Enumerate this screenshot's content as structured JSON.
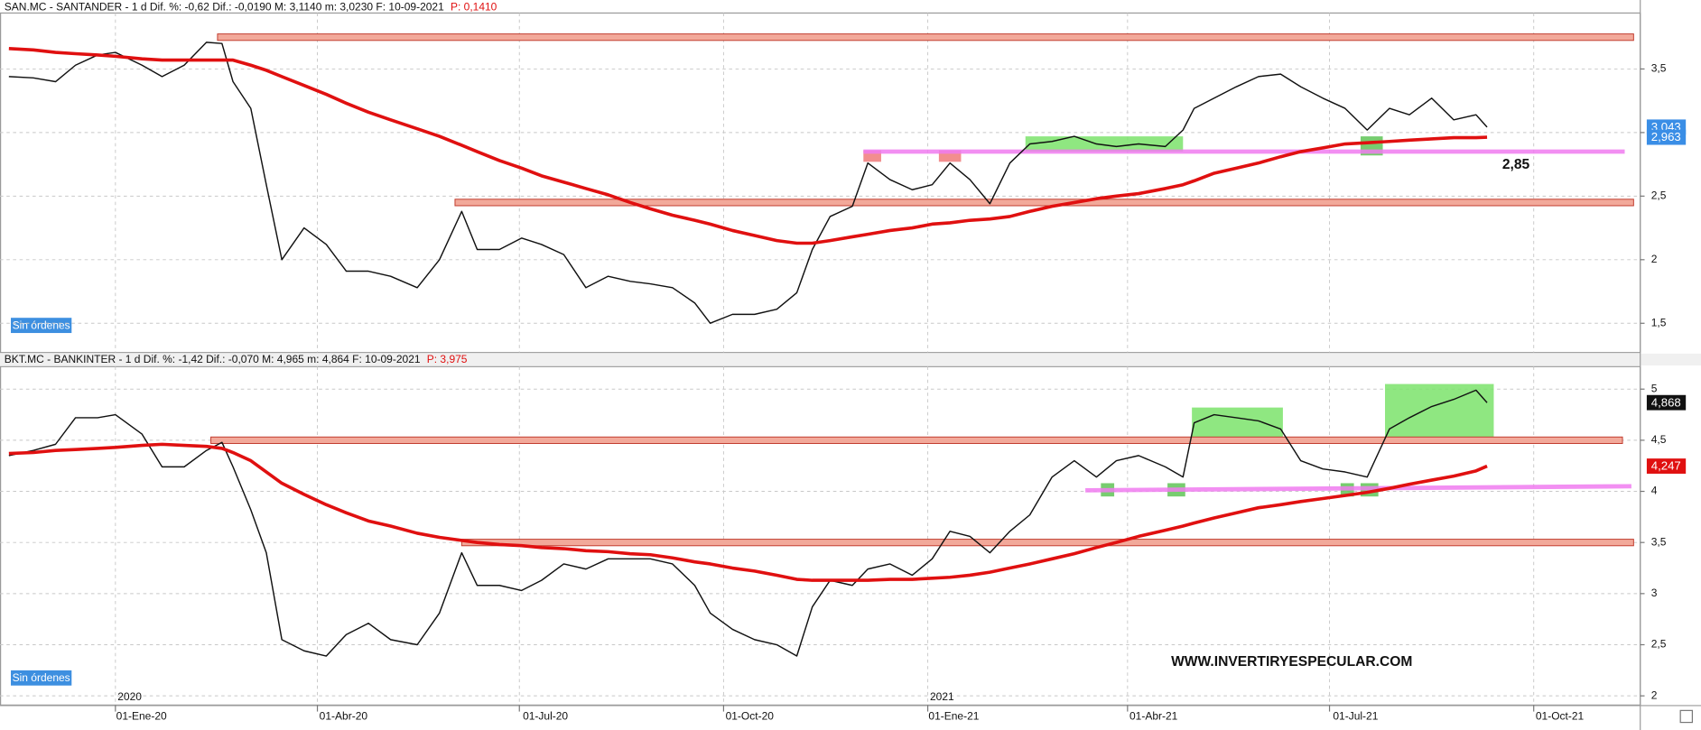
{
  "chart_data": [
    {
      "type": "line",
      "title": "SAN.MC - SANTANDER -  1 d  Dif. %: -0,62  Dif.: -0,0190  M: 3,1140  m: 3,0230  F: 10-09-2021",
      "subtitle": "P: 0,1410",
      "status": "Sin órdenes",
      "xlim": [
        -52,
        687
      ],
      "ylim": [
        1.27,
        3.94
      ],
      "yticks": [
        {
          "value": 3.5,
          "label": "3,5"
        },
        3,
        {
          "value": 2.5,
          "label": "2,5"
        },
        2,
        {
          "value": 1.5,
          "label": "1,5"
        }
      ],
      "grid": true,
      "x": [
        -48,
        -37,
        -27,
        -18,
        -8,
        0,
        12,
        21,
        31,
        41,
        48,
        53,
        61,
        68,
        75,
        85,
        95,
        104,
        114,
        124,
        136,
        146,
        156,
        163,
        173,
        183,
        192,
        202,
        212,
        222,
        232,
        241,
        251,
        261,
        268,
        278,
        288,
        298,
        307,
        314,
        322,
        332,
        339,
        349,
        359,
        368,
        376,
        385,
        394,
        403,
        412,
        422,
        432,
        442,
        451,
        461,
        473,
        481,
        486,
        495,
        505,
        515,
        525,
        534,
        544,
        554,
        564,
        574,
        583,
        593,
        603,
        613,
        618
      ],
      "series": [
        {
          "color": "#111111",
          "label_color": "#3a8ee6",
          "last_label": "3,043",
          "values": [
            3.44,
            3.43,
            3.4,
            3.53,
            3.61,
            3.63,
            3.53,
            3.44,
            3.53,
            3.71,
            3.7,
            3.4,
            3.19,
            2.59,
            2.0,
            2.25,
            2.12,
            1.91,
            1.91,
            1.87,
            1.78,
            2.0,
            2.38,
            2.08,
            2.08,
            2.17,
            2.12,
            2.04,
            1.78,
            1.87,
            1.83,
            1.81,
            1.78,
            1.66,
            1.5,
            1.57,
            1.57,
            1.61,
            1.74,
            2.08,
            2.34,
            2.42,
            2.76,
            2.63,
            2.55,
            2.59,
            2.76,
            2.63,
            2.44,
            2.76,
            2.91,
            2.93,
            2.97,
            2.91,
            2.89,
            2.91,
            2.89,
            3.02,
            3.19,
            3.27,
            3.36,
            3.44,
            3.46,
            3.36,
            3.27,
            3.19,
            3.02,
            3.19,
            3.14,
            3.27,
            3.1,
            3.14,
            3.043
          ]
        },
        {
          "color": "#e01010",
          "label_color": "#3a8ee6",
          "last_label": "2,963",
          "values": [
            3.66,
            3.65,
            3.63,
            3.62,
            3.61,
            3.6,
            3.58,
            3.57,
            3.57,
            3.57,
            3.57,
            3.57,
            3.53,
            3.49,
            3.44,
            3.37,
            3.3,
            3.23,
            3.16,
            3.1,
            3.03,
            2.97,
            2.9,
            2.85,
            2.78,
            2.72,
            2.66,
            2.61,
            2.56,
            2.51,
            2.45,
            2.4,
            2.35,
            2.31,
            2.28,
            2.23,
            2.19,
            2.15,
            2.13,
            2.13,
            2.15,
            2.18,
            2.2,
            2.23,
            2.25,
            2.28,
            2.29,
            2.31,
            2.32,
            2.34,
            2.38,
            2.42,
            2.45,
            2.48,
            2.5,
            2.52,
            2.56,
            2.59,
            2.62,
            2.68,
            2.72,
            2.76,
            2.81,
            2.85,
            2.88,
            2.91,
            2.92,
            2.93,
            2.94,
            2.95,
            2.96,
            2.96,
            2.963
          ]
        }
      ],
      "bands": [
        {
          "x1": 46,
          "x2": 684,
          "value": 3.75,
          "color": "#f2a99a"
        },
        {
          "x1": 153,
          "x2": 684,
          "value": 2.45,
          "color": "#f2a99a"
        }
      ],
      "trend_lines": [
        {
          "x1": 337,
          "x2": 680,
          "y1": 2.85,
          "y2": 2.85,
          "color": "#f07cf0"
        }
      ],
      "zones": [
        {
          "x1": 410,
          "x2": 481,
          "y1": 2.85,
          "y2": 2.97,
          "color": "#7be36b"
        },
        {
          "x1": 561,
          "x2": 571,
          "y1": 2.82,
          "y2": 2.97,
          "color": "#5fc456"
        },
        {
          "x1": 337,
          "x2": 345,
          "y1": 2.77,
          "y2": 2.86,
          "color": "#f07a7a"
        },
        {
          "x1": 371,
          "x2": 381,
          "y1": 2.77,
          "y2": 2.86,
          "color": "#f07a7a"
        }
      ],
      "annotations": [
        {
          "text": "2,85",
          "x": 631,
          "y": 2.745
        }
      ]
    },
    {
      "type": "line",
      "title": "BKT.MC - BANKINTER -  1 d  Dif. %: -1,42  Dif.: -0,070  M: 4,965  m: 4,864  F: 10-09-2021",
      "subtitle": "P: 3,975",
      "status": "Sin órdenes",
      "xlim": [
        -52,
        687
      ],
      "ylim": [
        1.91,
        5.22
      ],
      "yticks": [
        5,
        {
          "value": 4.5,
          "label": "4,5"
        },
        4,
        {
          "value": 3.5,
          "label": "3,5"
        },
        3,
        {
          "value": 2.5,
          "label": "2,5"
        },
        2
      ],
      "xticks": [
        {
          "value": 0,
          "label": "01-Ene-20"
        },
        {
          "value": 91,
          "label": "01-Abr-20"
        },
        {
          "value": 182,
          "label": "01-Jul-20"
        },
        {
          "value": 274,
          "label": "01-Oct-20"
        },
        {
          "value": 366,
          "label": "01-Ene-21"
        },
        {
          "value": 456,
          "label": "01-Abr-21"
        },
        {
          "value": 547,
          "label": "01-Jul-21"
        },
        {
          "value": 639,
          "label": "01-Oct-21"
        }
      ],
      "year_labels": [
        {
          "value": 0,
          "label": "2020"
        },
        {
          "value": 366,
          "label": "2021"
        }
      ],
      "grid": true,
      "x": [
        -48,
        -37,
        -27,
        -18,
        -8,
        0,
        12,
        21,
        31,
        41,
        48,
        53,
        61,
        68,
        75,
        85,
        95,
        104,
        114,
        124,
        136,
        146,
        156,
        163,
        173,
        183,
        192,
        202,
        212,
        222,
        232,
        241,
        251,
        261,
        268,
        278,
        288,
        298,
        307,
        314,
        322,
        332,
        339,
        349,
        359,
        368,
        376,
        385,
        394,
        403,
        412,
        422,
        432,
        442,
        451,
        461,
        473,
        481,
        486,
        495,
        505,
        515,
        525,
        534,
        544,
        554,
        564,
        574,
        583,
        593,
        603,
        613,
        618
      ],
      "series": [
        {
          "color": "#111111",
          "label_color": "#111111",
          "last_label": "4,868",
          "values": [
            4.35,
            4.4,
            4.46,
            4.72,
            4.72,
            4.75,
            4.56,
            4.24,
            4.24,
            4.4,
            4.48,
            4.24,
            3.82,
            3.4,
            2.55,
            2.44,
            2.39,
            2.6,
            2.71,
            2.55,
            2.5,
            2.81,
            3.4,
            3.08,
            3.08,
            3.03,
            3.13,
            3.29,
            3.24,
            3.34,
            3.34,
            3.34,
            3.29,
            3.08,
            2.81,
            2.65,
            2.55,
            2.5,
            2.39,
            2.87,
            3.13,
            3.08,
            3.24,
            3.29,
            3.18,
            3.34,
            3.61,
            3.56,
            3.4,
            3.61,
            3.77,
            4.14,
            4.3,
            4.14,
            4.3,
            4.35,
            4.24,
            4.14,
            4.67,
            4.75,
            4.72,
            4.69,
            4.61,
            4.3,
            4.22,
            4.19,
            4.14,
            4.61,
            4.72,
            4.83,
            4.9,
            4.99,
            4.868
          ]
        },
        {
          "color": "#e01010",
          "label_color": "#e01010",
          "last_label": "4,247",
          "values": [
            4.37,
            4.38,
            4.4,
            4.41,
            4.42,
            4.43,
            4.45,
            4.46,
            4.45,
            4.44,
            4.42,
            4.38,
            4.3,
            4.19,
            4.08,
            3.97,
            3.87,
            3.79,
            3.71,
            3.66,
            3.59,
            3.55,
            3.52,
            3.5,
            3.48,
            3.47,
            3.45,
            3.44,
            3.42,
            3.41,
            3.39,
            3.38,
            3.35,
            3.31,
            3.29,
            3.25,
            3.22,
            3.18,
            3.14,
            3.13,
            3.13,
            3.13,
            3.13,
            3.14,
            3.14,
            3.15,
            3.16,
            3.18,
            3.21,
            3.25,
            3.29,
            3.34,
            3.39,
            3.45,
            3.5,
            3.56,
            3.62,
            3.66,
            3.69,
            3.74,
            3.79,
            3.84,
            3.87,
            3.9,
            3.93,
            3.96,
            3.99,
            4.03,
            4.07,
            4.11,
            4.15,
            4.2,
            4.247
          ]
        }
      ],
      "bands": [
        {
          "x1": 43,
          "x2": 679,
          "value": 4.5,
          "color": "#f2a99a"
        },
        {
          "x1": 156,
          "x2": 684,
          "value": 3.5,
          "color": "#f2a99a"
        }
      ],
      "trend_lines": [
        {
          "x1": 437,
          "x2": 683,
          "y1": 4.01,
          "y2": 4.05,
          "color": "#f07cf0"
        }
      ],
      "zones": [
        {
          "x1": 485,
          "x2": 526,
          "y1": 4.48,
          "y2": 4.82,
          "color": "#7be36b"
        },
        {
          "x1": 572,
          "x2": 621,
          "y1": 4.48,
          "y2": 5.05,
          "color": "#7be36b"
        },
        {
          "x1": 444,
          "x2": 450,
          "y1": 3.95,
          "y2": 4.08,
          "color": "#5fc456"
        },
        {
          "x1": 474,
          "x2": 482,
          "y1": 3.95,
          "y2": 4.08,
          "color": "#5fc456"
        },
        {
          "x1": 552,
          "x2": 558,
          "y1": 3.95,
          "y2": 4.08,
          "color": "#5fc456"
        },
        {
          "x1": 561,
          "x2": 569,
          "y1": 3.95,
          "y2": 4.08,
          "color": "#5fc456"
        }
      ],
      "annotations": [
        {
          "text": "WWW.INVERTIRYESPECULAR.COM",
          "x": 530,
          "y": 2.33
        }
      ]
    }
  ]
}
